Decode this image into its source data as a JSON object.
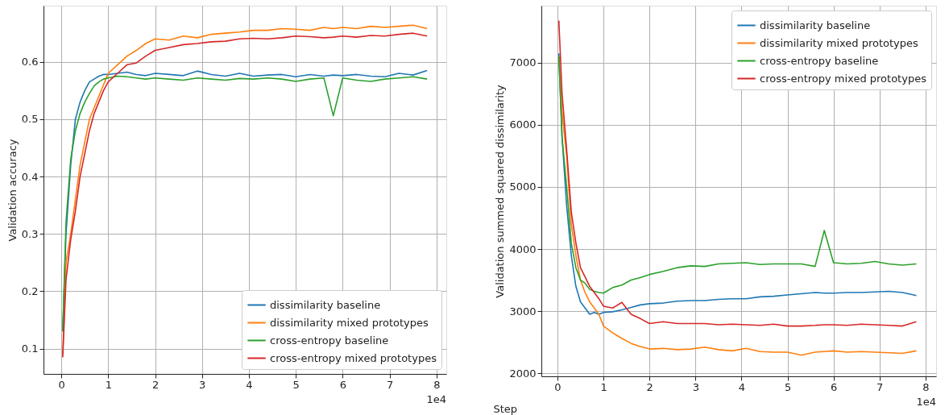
{
  "chart_data": [
    {
      "type": "line",
      "ylabel": "Validation accuracy",
      "annotations": [
        "1e4"
      ],
      "x": [
        0.03,
        0.1,
        0.2,
        0.3,
        0.4,
        0.5,
        0.6,
        0.7,
        0.8,
        0.9,
        1.0,
        1.2,
        1.4,
        1.6,
        1.8,
        2.0,
        2.3,
        2.6,
        2.9,
        3.2,
        3.5,
        3.8,
        4.1,
        4.4,
        4.7,
        5.0,
        5.3,
        5.6,
        5.8,
        6.0,
        6.3,
        6.6,
        6.9,
        7.2,
        7.5,
        7.8
      ],
      "xlim": [
        -0.38,
        8.21
      ],
      "xticks": [
        0,
        1,
        2,
        3,
        4,
        5,
        6,
        7,
        8
      ],
      "ylim": [
        0.056,
        0.698
      ],
      "yticks": [
        0.1,
        0.2,
        0.3,
        0.4,
        0.5,
        0.6
      ],
      "grid": true,
      "legend": "bottom right",
      "series": [
        {
          "name": "dissimilarity baseline",
          "color": "#1f77b4",
          "values": [
            0.13,
            0.3,
            0.42,
            0.5,
            0.53,
            0.55,
            0.565,
            0.57,
            0.575,
            0.578,
            0.578,
            0.58,
            0.582,
            0.578,
            0.576,
            0.58,
            0.578,
            0.576,
            0.584,
            0.578,
            0.575,
            0.58,
            0.575,
            0.577,
            0.578,
            0.574,
            0.578,
            0.575,
            0.577,
            0.576,
            0.578,
            0.575,
            0.574,
            0.58,
            0.577,
            0.585
          ]
        },
        {
          "name": "dissimilarity mixed prototypes",
          "color": "#ff7f0e",
          "values": [
            0.09,
            0.25,
            0.3,
            0.36,
            0.42,
            0.46,
            0.5,
            0.52,
            0.54,
            0.56,
            0.58,
            0.595,
            0.61,
            0.62,
            0.632,
            0.64,
            0.638,
            0.645,
            0.642,
            0.648,
            0.65,
            0.652,
            0.655,
            0.655,
            0.658,
            0.657,
            0.655,
            0.66,
            0.658,
            0.66,
            0.658,
            0.662,
            0.66,
            0.662,
            0.664,
            0.658
          ]
        },
        {
          "name": "cross-entropy baseline",
          "color": "#2ca02c",
          "values": [
            0.13,
            0.32,
            0.43,
            0.48,
            0.51,
            0.53,
            0.545,
            0.558,
            0.565,
            0.57,
            0.572,
            0.575,
            0.574,
            0.572,
            0.57,
            0.572,
            0.57,
            0.568,
            0.572,
            0.57,
            0.568,
            0.571,
            0.57,
            0.572,
            0.57,
            0.566,
            0.57,
            0.572,
            0.506,
            0.572,
            0.568,
            0.566,
            0.57,
            0.572,
            0.574,
            0.57
          ]
        },
        {
          "name": "cross-entropy mixed prototypes",
          "color": "#d62728",
          "values": [
            0.085,
            0.22,
            0.29,
            0.34,
            0.4,
            0.44,
            0.48,
            0.51,
            0.53,
            0.55,
            0.565,
            0.58,
            0.595,
            0.598,
            0.61,
            0.62,
            0.625,
            0.63,
            0.632,
            0.635,
            0.636,
            0.64,
            0.641,
            0.64,
            0.642,
            0.645,
            0.644,
            0.642,
            0.643,
            0.645,
            0.643,
            0.646,
            0.645,
            0.648,
            0.65,
            0.645
          ]
        }
      ]
    },
    {
      "type": "line",
      "xlabel": "Step",
      "ylabel": "Validation summed squared dissimilarity",
      "annotations": [
        "1e4"
      ],
      "x": [
        0.03,
        0.1,
        0.2,
        0.3,
        0.4,
        0.5,
        0.6,
        0.7,
        0.8,
        0.9,
        1.0,
        1.2,
        1.4,
        1.6,
        1.8,
        2.0,
        2.3,
        2.6,
        2.9,
        3.2,
        3.5,
        3.8,
        4.1,
        4.4,
        4.7,
        5.0,
        5.3,
        5.6,
        5.8,
        6.0,
        6.3,
        6.6,
        6.9,
        7.2,
        7.5,
        7.8
      ],
      "xlim": [
        -0.35,
        8.23
      ],
      "xticks": [
        0,
        1,
        2,
        3,
        4,
        5,
        6,
        7,
        8
      ],
      "ylim": [
        1950,
        7920
      ],
      "yticks": [
        2000,
        3000,
        4000,
        5000,
        6000,
        7000
      ],
      "grid": true,
      "legend": "top right",
      "series": [
        {
          "name": "dissimilarity baseline",
          "color": "#1f77b4",
          "values": [
            7150,
            5800,
            4700,
            3900,
            3400,
            3150,
            3050,
            2950,
            2980,
            2950,
            2980,
            2990,
            3020,
            3060,
            3100,
            3120,
            3130,
            3160,
            3170,
            3170,
            3190,
            3200,
            3200,
            3230,
            3240,
            3260,
            3280,
            3300,
            3290,
            3290,
            3300,
            3300,
            3310,
            3320,
            3300,
            3250
          ]
        },
        {
          "name": "dissimilarity mixed prototypes",
          "color": "#ff7f0e",
          "values": [
            7100,
            6200,
            5500,
            4400,
            3900,
            3500,
            3300,
            3150,
            3050,
            2950,
            2760,
            2650,
            2560,
            2480,
            2430,
            2390,
            2400,
            2380,
            2390,
            2420,
            2380,
            2360,
            2400,
            2350,
            2340,
            2340,
            2290,
            2340,
            2350,
            2360,
            2340,
            2350,
            2340,
            2330,
            2320,
            2360
          ]
        },
        {
          "name": "cross-entropy baseline",
          "color": "#2ca02c",
          "values": [
            7100,
            5800,
            5000,
            4100,
            3700,
            3500,
            3450,
            3350,
            3320,
            3300,
            3290,
            3380,
            3420,
            3500,
            3540,
            3590,
            3640,
            3700,
            3730,
            3720,
            3760,
            3770,
            3780,
            3750,
            3760,
            3760,
            3760,
            3720,
            4300,
            3780,
            3760,
            3770,
            3800,
            3760,
            3740,
            3760
          ]
        },
        {
          "name": "cross-entropy mixed prototypes",
          "color": "#d62728",
          "values": [
            7680,
            6500,
            5600,
            4600,
            4100,
            3700,
            3550,
            3400,
            3300,
            3200,
            3080,
            3050,
            3140,
            2950,
            2880,
            2800,
            2830,
            2800,
            2800,
            2800,
            2780,
            2790,
            2780,
            2770,
            2790,
            2760,
            2760,
            2770,
            2780,
            2780,
            2770,
            2790,
            2780,
            2770,
            2760,
            2830
          ]
        }
      ]
    }
  ]
}
